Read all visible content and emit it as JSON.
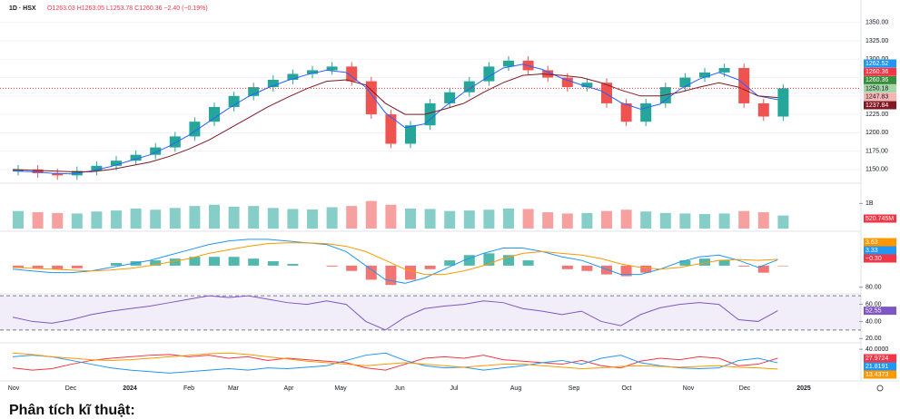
{
  "header": {
    "symbol": "1D · HSX",
    "ohlc": "O1263.03 H1263.05 L1253.78 C1260.36 −2.40 (−0.19%)"
  },
  "section_heading": "Phân tích kĩ thuật:",
  "time_labels": [
    "Nov",
    "Dec",
    "2024",
    "Feb",
    "Mar",
    "Apr",
    "May",
    "Jun",
    "Jul",
    "Aug",
    "Sep",
    "Oct",
    "Nov",
    "Dec",
    "2025"
  ],
  "chart_data": [
    {
      "type": "candlestick",
      "up_color": "#26a69a",
      "down_color": "#ef5350",
      "open": [
        1148,
        1150,
        1145,
        1142,
        1148,
        1155,
        1162,
        1170,
        1180,
        1195,
        1215,
        1235,
        1250,
        1262,
        1272,
        1280,
        1285,
        1290,
        1270,
        1225,
        1185,
        1210,
        1240,
        1255,
        1270,
        1290,
        1298,
        1285,
        1275,
        1262,
        1268,
        1240,
        1215,
        1240,
        1262,
        1275,
        1282,
        1288,
        1240,
        1222
      ],
      "high": [
        1156,
        1156,
        1151,
        1154,
        1161,
        1168,
        1176,
        1186,
        1201,
        1221,
        1241,
        1256,
        1268,
        1278,
        1286,
        1291,
        1296,
        1296,
        1276,
        1231,
        1216,
        1246,
        1261,
        1276,
        1296,
        1304,
        1304,
        1291,
        1281,
        1274,
        1274,
        1246,
        1246,
        1268,
        1281,
        1288,
        1294,
        1294,
        1246,
        1266
      ],
      "low": [
        1142,
        1139,
        1136,
        1136,
        1142,
        1149,
        1156,
        1164,
        1174,
        1189,
        1209,
        1229,
        1244,
        1256,
        1266,
        1274,
        1279,
        1264,
        1219,
        1179,
        1179,
        1204,
        1234,
        1249,
        1264,
        1284,
        1279,
        1269,
        1256,
        1256,
        1234,
        1209,
        1209,
        1234,
        1256,
        1269,
        1276,
        1234,
        1216,
        1216
      ],
      "close": [
        1150,
        1145,
        1142,
        1148,
        1155,
        1162,
        1170,
        1180,
        1195,
        1215,
        1235,
        1250,
        1262,
        1272,
        1280,
        1285,
        1290,
        1270,
        1225,
        1185,
        1210,
        1240,
        1255,
        1270,
        1290,
        1298,
        1285,
        1275,
        1262,
        1268,
        1240,
        1215,
        1240,
        1262,
        1275,
        1282,
        1288,
        1240,
        1222,
        1260.36
      ],
      "series": [
        {
          "color": "#2962ff",
          "values": [
            1148,
            1147,
            1145,
            1144,
            1148,
            1154,
            1162,
            1170,
            1182,
            1197,
            1215,
            1233,
            1249,
            1261,
            1271,
            1279,
            1285,
            1282,
            1262,
            1227,
            1207,
            1212,
            1235,
            1255,
            1272,
            1288,
            1293,
            1286,
            1274,
            1265,
            1257,
            1241,
            1232,
            1239,
            1259,
            1273,
            1282,
            1272,
            1250,
            1245
          ]
        },
        {
          "color": "#801922",
          "values": [
            1150,
            1149,
            1148,
            1147,
            1147,
            1150,
            1155,
            1160,
            1168,
            1178,
            1190,
            1205,
            1220,
            1235,
            1248,
            1260,
            1270,
            1272,
            1265,
            1240,
            1225,
            1225,
            1232,
            1240,
            1255,
            1268,
            1278,
            1280,
            1278,
            1275,
            1268,
            1258,
            1250,
            1250,
            1255,
            1262,
            1268,
            1262,
            1250,
            1247.83
          ]
        }
      ],
      "ylim": [
        1140,
        1362
      ],
      "yticks": [
        {
          "value": 1150,
          "label": "1150.00"
        },
        {
          "value": 1175,
          "label": "1175.00"
        },
        {
          "value": 1200,
          "label": "1200.00"
        },
        {
          "value": 1225,
          "label": "1225.00"
        },
        {
          "value": 1250,
          "label": "1250.00"
        },
        {
          "value": 1275,
          "label": "1275.00"
        },
        {
          "value": 1300,
          "label": "1300.00"
        },
        {
          "value": 1325,
          "label": "1325.00"
        },
        {
          "value": 1350,
          "label": "1350.00"
        }
      ],
      "price_labels": [
        {
          "value": 1262.52,
          "color": "#2196f3"
        },
        {
          "value": 1260.36,
          "color": "#f23645"
        },
        {
          "value": 1260.36,
          "color": "#388e3c"
        },
        {
          "value": 1250.18,
          "color": "#a5d6a7"
        },
        {
          "value": 1247.83,
          "color": "#f7b4b4"
        },
        {
          "value": 1237.84,
          "color": "#801922"
        }
      ]
    },
    {
      "type": "volume",
      "values": [
        700,
        650,
        620,
        600,
        680,
        720,
        800,
        750,
        820,
        900,
        950,
        870,
        900,
        820,
        780,
        760,
        850,
        900,
        1100,
        950,
        800,
        780,
        700,
        720,
        750,
        800,
        780,
        650,
        600,
        620,
        700,
        750,
        680,
        620,
        600,
        580,
        600,
        700,
        650,
        520.745
      ],
      "value_labels": {
        "39": "520.745M"
      },
      "ylim": [
        0,
        1700
      ],
      "yticks": [
        {
          "value": 1000,
          "label": "1B"
        }
      ],
      "color": "#f23645"
    },
    {
      "type": "macd",
      "histogram": [
        -1,
        -1.5,
        -2,
        -1.5,
        0,
        1.5,
        2.5,
        3,
        4,
        5,
        5,
        5,
        4,
        2.5,
        1,
        0,
        -0.5,
        -3,
        -8,
        -11,
        -8,
        -2,
        3,
        6,
        7,
        6,
        3,
        0,
        -2,
        -3,
        -5,
        -6,
        -4,
        0,
        3,
        4,
        3,
        -0.5,
        -4,
        -0.3
      ],
      "value_labels": {
        "39": "−0.30"
      },
      "series": [
        {
          "color": "#2196f3",
          "values": [
            -2,
            -3,
            -4,
            -4,
            -3,
            -1,
            1,
            3,
            6,
            9,
            12,
            14,
            15,
            15,
            14,
            13,
            12,
            8,
            0,
            -8,
            -10,
            -7,
            -2,
            3,
            7,
            10,
            10,
            8,
            5,
            3,
            -1,
            -5,
            -5,
            -2,
            2,
            5,
            6,
            3,
            -1,
            3.33
          ]
        },
        {
          "color": "#ff9800",
          "values": [
            -1,
            -1.5,
            -2,
            -2.5,
            -3,
            -2.5,
            -1.5,
            0,
            2,
            4,
            7,
            9,
            11,
            12.5,
            13,
            13,
            12.5,
            11,
            8,
            3,
            -2,
            -5,
            -5,
            -3,
            0,
            4,
            7,
            8,
            7,
            6,
            4,
            1,
            -1,
            -2,
            -1,
            1,
            3,
            3.5,
            3,
            3.63
          ]
        }
      ],
      "ylim": [
        -15,
        18
      ]
    },
    {
      "type": "line",
      "fill_band": [
        30,
        70
      ],
      "color": "#7e57c2",
      "values": [
        45,
        40,
        38,
        42,
        48,
        52,
        55,
        58,
        62,
        66,
        70,
        68,
        70,
        66,
        62,
        60,
        64,
        60,
        40,
        30,
        45,
        55,
        58,
        60,
        64,
        62,
        55,
        52,
        48,
        52,
        40,
        35,
        48,
        56,
        60,
        62,
        60,
        42,
        40,
        52.55
      ],
      "ylim": [
        15,
        85
      ],
      "yticks": [
        {
          "value": 20,
          "label": "20.00"
        },
        {
          "value": 40,
          "label": "40.00"
        },
        {
          "value": 60,
          "label": "60.00"
        },
        {
          "value": 80,
          "label": "80.00"
        }
      ]
    },
    {
      "type": "multiline",
      "series": [
        {
          "color": "#f23645",
          "values": [
            15,
            12,
            14,
            20,
            25,
            28,
            30,
            32,
            33,
            30,
            32,
            28,
            30,
            25,
            28,
            26,
            24,
            22,
            15,
            12,
            20,
            28,
            30,
            28,
            32,
            26,
            24,
            22,
            20,
            25,
            18,
            15,
            24,
            28,
            26,
            30,
            28,
            18,
            20,
            27.9724
          ]
        },
        {
          "color": "#2196f3",
          "values": [
            30,
            32,
            30,
            25,
            20,
            15,
            12,
            10,
            8,
            10,
            12,
            14,
            12,
            15,
            14,
            16,
            18,
            25,
            32,
            35,
            25,
            18,
            15,
            16,
            12,
            15,
            18,
            22,
            25,
            20,
            28,
            32,
            22,
            18,
            15,
            14,
            15,
            25,
            28,
            21.8191
          ]
        },
        {
          "color": "#ff9800",
          "values": [
            35,
            33,
            30,
            28,
            26,
            25,
            26,
            28,
            30,
            32,
            34,
            35,
            33,
            30,
            27,
            24,
            22,
            20,
            18,
            20,
            22,
            20,
            18,
            16,
            18,
            20,
            20,
            18,
            16,
            14,
            15,
            17,
            18,
            17,
            16,
            17,
            18,
            16,
            15,
            13.4373
          ]
        }
      ],
      "ylim": [
        0,
        45
      ],
      "yticks": [
        {
          "value": 40,
          "label": "40.0000"
        }
      ]
    }
  ]
}
